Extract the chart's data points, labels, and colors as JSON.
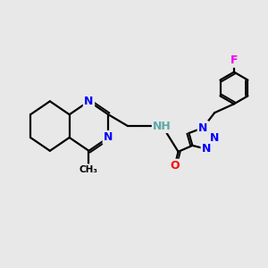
{
  "background_color": "#e8e8e8",
  "bond_color": "#000000",
  "atom_colors": {
    "N": "#0000ff",
    "O": "#ff0000",
    "F": "#ee00ee",
    "NH": "#5fa8a8",
    "C": "#000000"
  },
  "figsize": [
    3.0,
    3.0
  ],
  "dpi": 100
}
